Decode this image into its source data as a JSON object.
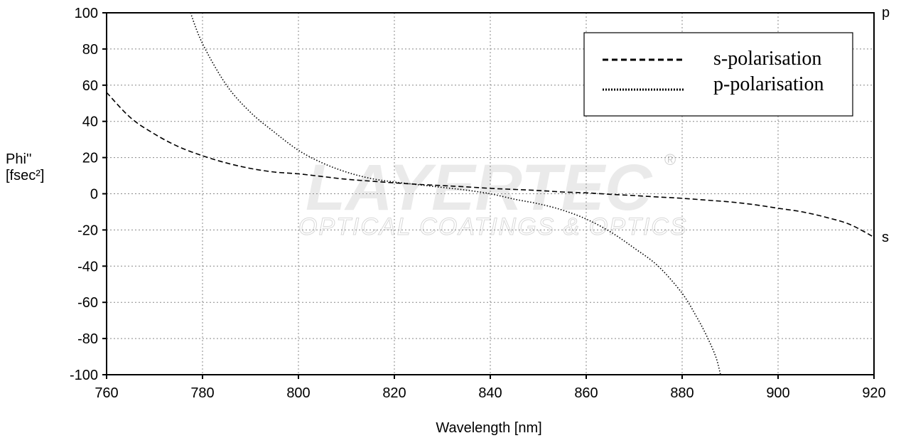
{
  "chart_data": {
    "type": "line",
    "xlabel": "Wavelength [nm]",
    "ylabel_line1": "Phi''",
    "ylabel_line2": "[fsec²]",
    "xlim": [
      760,
      920
    ],
    "ylim": [
      -100,
      100
    ],
    "xticks": [
      760,
      780,
      800,
      820,
      840,
      860,
      880,
      900,
      920
    ],
    "yticks": [
      100,
      80,
      60,
      40,
      20,
      0,
      -20,
      -40,
      -60,
      -80,
      -100
    ],
    "grid": true,
    "legend_position": "top-right",
    "right_labels": {
      "p": "p",
      "s": "s"
    },
    "series": [
      {
        "name": "s-polarisation",
        "line_style": "dashed",
        "x": [
          760,
          765,
          770,
          775,
          780,
          785,
          790,
          795,
          800,
          805,
          810,
          815,
          820,
          825,
          830,
          835,
          840,
          845,
          850,
          855,
          860,
          865,
          870,
          875,
          880,
          885,
          890,
          895,
          900,
          905,
          910,
          915,
          920
        ],
        "y": [
          56,
          42,
          33,
          26,
          21,
          17,
          14,
          12,
          11,
          9.5,
          8,
          7,
          6,
          5.2,
          4.5,
          3.8,
          3,
          2.4,
          1.8,
          1,
          0.5,
          -0.3,
          -1,
          -1.8,
          -2.5,
          -3.5,
          -4.5,
          -6,
          -8,
          -10,
          -13,
          -17,
          -24
        ]
      },
      {
        "name": "p-polarisation",
        "line_style": "dotted",
        "x": [
          777.5,
          780,
          785,
          790,
          795,
          800,
          805,
          810,
          815,
          820,
          825,
          830,
          835,
          840,
          845,
          850,
          855,
          860,
          865,
          870,
          875,
          880,
          883,
          885,
          887,
          888
        ],
        "y": [
          100,
          83,
          60,
          45,
          34,
          24,
          17,
          12,
          8.5,
          6.5,
          5,
          3.5,
          2,
          0,
          -3,
          -5.5,
          -9,
          -14,
          -21,
          -30,
          -40,
          -55,
          -68,
          -78,
          -90,
          -100
        ]
      }
    ]
  },
  "watermark": {
    "main": "LAYERTEC",
    "sub": "OPTICAL COATINGS & OPTICS",
    "registered": "®"
  }
}
